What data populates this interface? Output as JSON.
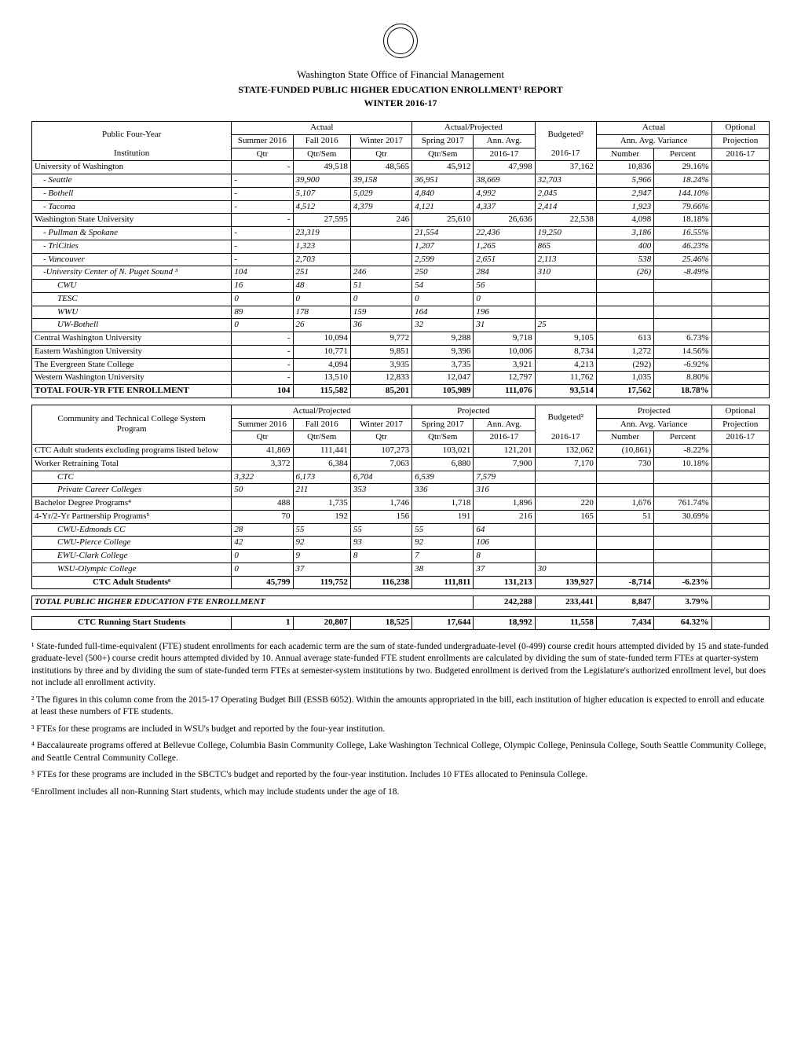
{
  "header": {
    "office": "Washington State Office of Financial Management",
    "title": "STATE-FUNDED PUBLIC HIGHER EDUCATION ENROLLMENT¹ REPORT",
    "term": "WINTER 2016-17"
  },
  "table1": {
    "groupHeads": {
      "actual": "Actual",
      "actualProjected": "Actual/Projected",
      "actual2": "Actual",
      "optional": "Optional"
    },
    "colHeads": {
      "inst1": "Public Four-Year",
      "inst2": "Institution",
      "summer": "Summer 2016",
      "fall": "Fall 2016",
      "winter": "Winter 2017",
      "spring": "Spring 2017",
      "annavg": "Ann. Avg.",
      "annavg2": "2016-17",
      "budgeted": "Budgeted²",
      "budgeted2": "2016-17",
      "variance": "Ann. Avg. Variance",
      "number": "Number",
      "percent": "Percent",
      "projection": "Projection",
      "projection2": "2016-17",
      "qtr": "Qtr",
      "qtrsem": "Qtr/Sem"
    },
    "rows": [
      {
        "label": "University of Washington",
        "summer": "-",
        "fall": "49,518",
        "winter": "48,565",
        "spring": "45,912",
        "annavg": "47,998",
        "budget": "37,162",
        "number": "10,836",
        "percent": "29.16%",
        "proj": "",
        "cls": ""
      },
      {
        "label": "- Seattle",
        "summer": "-",
        "fall": "39,900",
        "winter": "39,158",
        "spring": "36,951",
        "annavg": "38,669",
        "budget": "32,703",
        "number": "5,966",
        "percent": "18.24%",
        "proj": "",
        "cls": "italic indent1"
      },
      {
        "label": "- Bothell",
        "summer": "-",
        "fall": "5,107",
        "winter": "5,029",
        "spring": "4,840",
        "annavg": "4,992",
        "budget": "2,045",
        "number": "2,947",
        "percent": "144.10%",
        "proj": "",
        "cls": "italic indent1"
      },
      {
        "label": "- Tacoma",
        "summer": "-",
        "fall": "4,512",
        "winter": "4,379",
        "spring": "4,121",
        "annavg": "4,337",
        "budget": "2,414",
        "number": "1,923",
        "percent": "79.66%",
        "proj": "",
        "cls": "italic indent1"
      },
      {
        "label": "Washington State University",
        "summer": "-",
        "fall": "27,595",
        "winter": "246",
        "spring": "25,610",
        "annavg": "26,636",
        "budget": "22,538",
        "number": "4,098",
        "percent": "18.18%",
        "proj": "",
        "cls": ""
      },
      {
        "label": "- Pullman & Spokane",
        "summer": "-",
        "fall": "23,319",
        "winter": "",
        "spring": "21,554",
        "annavg": "22,436",
        "budget": "19,250",
        "number": "3,186",
        "percent": "16.55%",
        "proj": "",
        "cls": "italic indent1"
      },
      {
        "label": "- TriCities",
        "summer": "-",
        "fall": "1,323",
        "winter": "",
        "spring": "1,207",
        "annavg": "1,265",
        "budget": "865",
        "number": "400",
        "percent": "46.23%",
        "proj": "",
        "cls": "italic indent1"
      },
      {
        "label": "- Vancouver",
        "summer": "-",
        "fall": "2,703",
        "winter": "",
        "spring": "2,599",
        "annavg": "2,651",
        "budget": "2,113",
        "number": "538",
        "percent": "25.46%",
        "proj": "",
        "cls": "italic indent1"
      },
      {
        "label": "-University Center of N. Puget Sound ³",
        "summer": "104",
        "fall": "251",
        "winter": "246",
        "spring": "250",
        "annavg": "284",
        "budget": "310",
        "number": "(26)",
        "percent": "-8.49%",
        "proj": "",
        "cls": "italic indent1"
      },
      {
        "label": "CWU",
        "summer": "16",
        "fall": "48",
        "winter": "51",
        "spring": "54",
        "annavg": "56",
        "budget": "",
        "number": "",
        "percent": "",
        "proj": "",
        "cls": "italic indent2"
      },
      {
        "label": "TESC",
        "summer": "0",
        "fall": "0",
        "winter": "0",
        "spring": "0",
        "annavg": "0",
        "budget": "",
        "number": "",
        "percent": "",
        "proj": "",
        "cls": "italic indent2"
      },
      {
        "label": "WWU",
        "summer": "89",
        "fall": "178",
        "winter": "159",
        "spring": "164",
        "annavg": "196",
        "budget": "",
        "number": "",
        "percent": "",
        "proj": "",
        "cls": "italic indent2"
      },
      {
        "label": "UW-Bothell",
        "summer": "0",
        "fall": "26",
        "winter": "36",
        "spring": "32",
        "annavg": "31",
        "budget": "25",
        "number": "",
        "percent": "",
        "proj": "",
        "cls": "italic indent2"
      },
      {
        "label": "Central Washington University",
        "summer": "-",
        "fall": "10,094",
        "winter": "9,772",
        "spring": "9,288",
        "annavg": "9,718",
        "budget": "9,105",
        "number": "613",
        "percent": "6.73%",
        "proj": "",
        "cls": ""
      },
      {
        "label": "Eastern Washington University",
        "summer": "-",
        "fall": "10,771",
        "winter": "9,851",
        "spring": "9,396",
        "annavg": "10,006",
        "budget": "8,734",
        "number": "1,272",
        "percent": "14.56%",
        "proj": "",
        "cls": ""
      },
      {
        "label": "The Evergreen State College",
        "summer": "-",
        "fall": "4,094",
        "winter": "3,935",
        "spring": "3,735",
        "annavg": "3,921",
        "budget": "4,213",
        "number": "(292)",
        "percent": "-6.92%",
        "proj": "",
        "cls": ""
      },
      {
        "label": "Western Washington University",
        "summer": "-",
        "fall": "13,510",
        "winter": "12,833",
        "spring": "12,047",
        "annavg": "12,797",
        "budget": "11,762",
        "number": "1,035",
        "percent": "8.80%",
        "proj": "",
        "cls": ""
      }
    ],
    "total": {
      "label": "TOTAL FOUR-YR FTE ENROLLMENT",
      "summer": "104",
      "fall": "115,582",
      "winter": "85,201",
      "spring": "105,989",
      "annavg": "111,076",
      "budget": "93,514",
      "number": "17,562",
      "percent": "18.78%",
      "proj": ""
    }
  },
  "table2": {
    "groupHeads": {
      "actualProjected": "Actual/Projected",
      "projected": "Projected",
      "projected2": "Projected",
      "optional": "Optional"
    },
    "colHeads": {
      "inst1": "Community and Technical College System",
      "inst2": "Program",
      "summer": "Summer 2016",
      "fall": "Fall 2016",
      "winter": "Winter 2017",
      "spring": "Spring 2017",
      "annavg": "Ann. Avg.",
      "annavg2": "2016-17",
      "budgeted": "Budgeted²",
      "budgeted2": "2016-17",
      "variance": "Ann. Avg. Variance",
      "number": "Number",
      "percent": "Percent",
      "projection": "Projection",
      "projection2": "2016-17",
      "qtr": "Qtr",
      "qtrsem": "Qtr/Sem"
    },
    "rows": [
      {
        "label": "CTC Adult students excluding programs listed below",
        "summer": "41,869",
        "fall": "111,441",
        "winter": "107,273",
        "spring": "103,021",
        "annavg": "121,201",
        "budget": "132,062",
        "number": "(10,861)",
        "percent": "-8.22%",
        "proj": "",
        "cls": ""
      },
      {
        "label": "Worker Retraining Total",
        "summer": "3,372",
        "fall": "6,384",
        "winter": "7,063",
        "spring": "6,880",
        "annavg": "7,900",
        "budget": "7,170",
        "number": "730",
        "percent": "10.18%",
        "proj": "",
        "cls": ""
      },
      {
        "label": "CTC",
        "summer": "3,322",
        "fall": "6,173",
        "winter": "6,704",
        "spring": "6,539",
        "annavg": "7,579",
        "budget": "",
        "number": "",
        "percent": "",
        "proj": "",
        "cls": "italic indent2"
      },
      {
        "label": "Private Career Colleges",
        "summer": "50",
        "fall": "211",
        "winter": "353",
        "spring": "336",
        "annavg": "316",
        "budget": "",
        "number": "",
        "percent": "",
        "proj": "",
        "cls": "italic indent2"
      },
      {
        "label": "Bachelor Degree Programs⁴",
        "summer": "488",
        "fall": "1,735",
        "winter": "1,746",
        "spring": "1,718",
        "annavg": "1,896",
        "budget": "220",
        "number": "1,676",
        "percent": "761.74%",
        "proj": "",
        "cls": ""
      },
      {
        "label": "4-Yr/2-Yr Partnership Programs⁵",
        "summer": "70",
        "fall": "192",
        "winter": "156",
        "spring": "191",
        "annavg": "216",
        "budget": "165",
        "number": "51",
        "percent": "30.69%",
        "proj": "",
        "cls": ""
      },
      {
        "label": "CWU-Edmonds CC",
        "summer": "28",
        "fall": "55",
        "winter": "55",
        "spring": "55",
        "annavg": "64",
        "budget": "",
        "number": "",
        "percent": "",
        "proj": "",
        "cls": "italic indent2"
      },
      {
        "label": "CWU-Pierce College",
        "summer": "42",
        "fall": "92",
        "winter": "93",
        "spring": "92",
        "annavg": "106",
        "budget": "",
        "number": "",
        "percent": "",
        "proj": "",
        "cls": "italic indent2"
      },
      {
        "label": "EWU-Clark College",
        "summer": "0",
        "fall": "9",
        "winter": "8",
        "spring": "7",
        "annavg": "8",
        "budget": "",
        "number": "",
        "percent": "",
        "proj": "",
        "cls": "italic indent2"
      },
      {
        "label": "WSU-Olympic College",
        "summer": "0",
        "fall": "37",
        "winter": "",
        "spring": "38",
        "annavg": "37",
        "budget": "30",
        "number": "",
        "percent": "",
        "proj": "",
        "cls": "italic indent2"
      }
    ],
    "total": {
      "label": "CTC Adult Students⁶",
      "summer": "45,799",
      "fall": "119,752",
      "winter": "116,238",
      "spring": "111,811",
      "annavg": "131,213",
      "budget": "139,927",
      "number": "-8,714",
      "percent": "-6.23%",
      "proj": ""
    }
  },
  "totalsRow": {
    "label": "TOTAL PUBLIC HIGHER EDUCATION FTE ENROLLMENT",
    "annavg": "242,288",
    "budget": "233,441",
    "number": "8,847",
    "percent": "3.79%"
  },
  "runningStart": {
    "label": "CTC Running Start Students",
    "summer": "1",
    "fall": "20,807",
    "winter": "18,525",
    "spring": "17,644",
    "annavg": "18,992",
    "budget": "11,558",
    "number": "7,434",
    "percent": "64.32%"
  },
  "footnotes": {
    "f1": "¹ State-funded full-time-equivalent (FTE) student enrollments for each academic term are the sum of state-funded undergraduate-level (0-499) course credit hours attempted divided by 15 and state-funded graduate-level (500+) course credit hours attempted divided by 10. Annual average state-funded FTE student enrollments are calculated by dividing the sum of state-funded term FTEs at quarter-system institutions by three and by dividing the sum of state-funded term FTEs at semester-system institutions by two. Budgeted enrollment is derived from the Legislature's authorized enrollment level, but does not include all enrollment activity.",
    "f2": "² The figures in this column come from the 2015-17 Operating Budget Bill (ESSB 6052). Within the amounts appropriated in the bill, each institution of higher education is expected to enroll and educate at least these numbers of FTE students.",
    "f3": "³ FTEs for these programs are included in WSU's budget and reported by the four-year institution.",
    "f4": "⁴ Baccalaureate programs offered at Bellevue College, Columbia Basin Community College, Lake Washington Technical College, Olympic College, Peninsula College, South Seattle Community College, and Seattle Central Community College.",
    "f5": "⁵ FTEs for these programs are included in the SBCTC's budget and reported by the four-year institution.  Includes 10 FTEs allocated to Peninsula College.",
    "f6": "⁶Enrollment includes all non-Running Start students, which may include students under the age of 18."
  }
}
